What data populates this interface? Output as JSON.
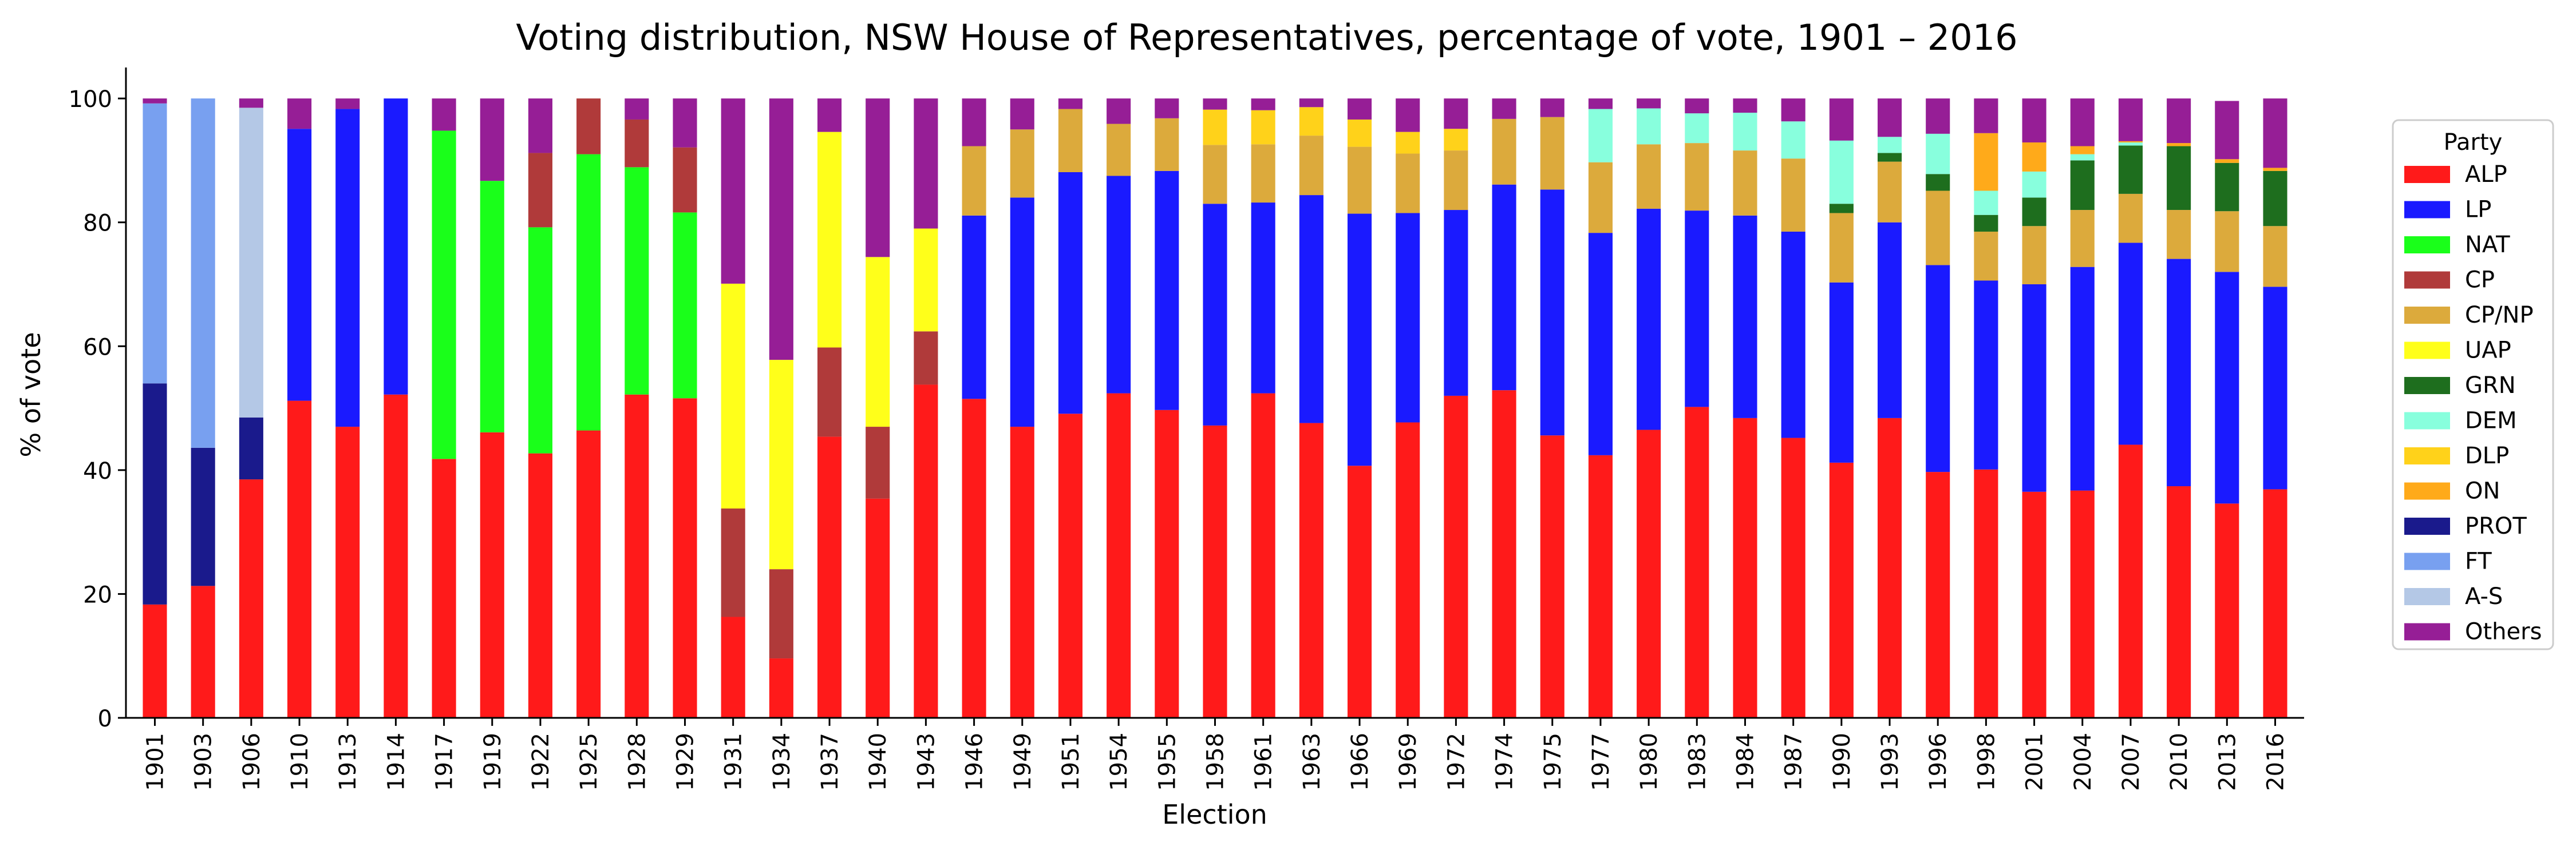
{
  "chart_data": {
    "type": "bar",
    "stacked": true,
    "title": "Voting distribution, NSW House of Representatives, percentage of vote, 1901 – 2016",
    "xlabel": "Election",
    "ylabel": "% of vote",
    "ylim": [
      0,
      105
    ],
    "yticks": [
      0,
      20,
      40,
      60,
      80,
      100
    ],
    "grid": false,
    "legend": {
      "title": "Party",
      "placement": "right"
    },
    "categories": [
      "1901",
      "1903",
      "1906",
      "1910",
      "1913",
      "1914",
      "1917",
      "1919",
      "1922",
      "1925",
      "1928",
      "1929",
      "1931",
      "1934",
      "1937",
      "1940",
      "1943",
      "1946",
      "1949",
      "1951",
      "1954",
      "1955",
      "1958",
      "1961",
      "1963",
      "1966",
      "1969",
      "1972",
      "1974",
      "1975",
      "1977",
      "1980",
      "1983",
      "1984",
      "1987",
      "1990",
      "1993",
      "1996",
      "1998",
      "2001",
      "2004",
      "2007",
      "2010",
      "2013",
      "2016"
    ],
    "series": [
      {
        "name": "ALP",
        "color": "#ff1a1a",
        "values": [
          18.3,
          21.3,
          38.5,
          51.2,
          47.0,
          52.2,
          41.8,
          46.1,
          42.7,
          46.4,
          52.2,
          51.6,
          16.3,
          9.6,
          45.4,
          35.4,
          53.8,
          51.5,
          47.0,
          49.1,
          52.4,
          49.7,
          47.2,
          52.4,
          47.6,
          40.7,
          47.7,
          52.0,
          52.9,
          45.6,
          42.4,
          46.5,
          50.2,
          48.4,
          45.2,
          41.2,
          48.4,
          39.7,
          40.1,
          36.5,
          36.7,
          44.1,
          37.4,
          34.6,
          36.9
        ]
      },
      {
        "name": "LP",
        "color": "#1a1aff",
        "values": [
          0,
          0,
          0,
          43.9,
          51.3,
          47.8,
          0,
          0,
          0,
          0,
          0,
          0,
          0,
          0,
          0,
          0,
          0,
          29.6,
          37.0,
          39.0,
          35.1,
          38.6,
          35.8,
          30.8,
          36.8,
          40.7,
          33.8,
          30.0,
          33.2,
          39.7,
          35.9,
          35.7,
          31.7,
          32.7,
          33.3,
          29.1,
          31.6,
          33.4,
          30.5,
          33.5,
          36.1,
          32.6,
          36.7,
          37.4,
          32.7
        ]
      },
      {
        "name": "NAT",
        "color": "#1aff1a",
        "values": [
          0,
          0,
          0,
          0,
          0,
          0,
          53.0,
          40.6,
          36.5,
          44.6,
          36.7,
          30.0,
          0,
          0,
          0,
          0,
          0,
          0,
          0,
          0,
          0,
          0,
          0,
          0,
          0,
          0,
          0,
          0,
          0,
          0,
          0,
          0,
          0,
          0,
          0,
          0,
          0,
          0,
          0,
          0,
          0,
          0,
          0,
          0,
          0
        ]
      },
      {
        "name": "CP",
        "color": "#b03a3a",
        "values": [
          0,
          0,
          0,
          0,
          0,
          0,
          0,
          0,
          12.0,
          9.0,
          7.7,
          10.5,
          17.5,
          14.4,
          14.4,
          11.6,
          8.6,
          0,
          0,
          0,
          0,
          0,
          0,
          0,
          0,
          0,
          0,
          0,
          0,
          0,
          0,
          0,
          0,
          0,
          0,
          0,
          0,
          0,
          0,
          0,
          0,
          0,
          0,
          0,
          0
        ]
      },
      {
        "name": "CP/NP",
        "color": "#dcaa3c",
        "values": [
          0,
          0,
          0,
          0,
          0,
          0,
          0,
          0,
          0,
          0,
          0,
          0,
          0,
          0,
          0,
          0,
          0,
          11.2,
          11.0,
          10.2,
          8.4,
          8.5,
          9.5,
          9.4,
          9.6,
          10.8,
          9.6,
          9.6,
          10.6,
          11.7,
          11.4,
          10.4,
          10.9,
          10.5,
          11.8,
          11.2,
          9.8,
          12.0,
          7.9,
          9.4,
          9.2,
          7.9,
          7.9,
          9.8,
          9.8
        ]
      },
      {
        "name": "UAP",
        "color": "#ffff1a",
        "values": [
          0,
          0,
          0,
          0,
          0,
          0,
          0,
          0,
          0,
          0,
          0,
          0,
          36.3,
          33.8,
          34.8,
          27.4,
          16.6,
          0,
          0,
          0,
          0,
          0,
          0,
          0,
          0,
          0,
          0,
          0,
          0,
          0,
          0,
          0,
          0,
          0,
          0,
          0,
          0,
          0,
          0,
          0,
          0,
          0,
          0,
          0,
          0
        ]
      },
      {
        "name": "GRN",
        "color": "#1e6e1e",
        "values": [
          0,
          0,
          0,
          0,
          0,
          0,
          0,
          0,
          0,
          0,
          0,
          0,
          0,
          0,
          0,
          0,
          0,
          0,
          0,
          0,
          0,
          0,
          0,
          0,
          0,
          0,
          0,
          0,
          0,
          0,
          0,
          0,
          0,
          0,
          0,
          1.5,
          1.4,
          2.7,
          2.7,
          4.6,
          8.0,
          7.8,
          10.3,
          7.8,
          8.9
        ]
      },
      {
        "name": "DEM",
        "color": "#88ffdd",
        "values": [
          0,
          0,
          0,
          0,
          0,
          0,
          0,
          0,
          0,
          0,
          0,
          0,
          0,
          0,
          0,
          0,
          0,
          0,
          0,
          0,
          0,
          0,
          0,
          0,
          0,
          0,
          0,
          0,
          0,
          0,
          8.6,
          5.8,
          4.8,
          6.1,
          6.0,
          10.2,
          2.6,
          6.5,
          3.9,
          4.2,
          1.0,
          0.5,
          0,
          0,
          0
        ]
      },
      {
        "name": "DLP",
        "color": "#ffd21a",
        "values": [
          0,
          0,
          0,
          0,
          0,
          0,
          0,
          0,
          0,
          0,
          0,
          0,
          0,
          0,
          0,
          0,
          0,
          0,
          0,
          0,
          0,
          0,
          5.7,
          5.5,
          4.6,
          4.4,
          3.5,
          3.5,
          0,
          0,
          0,
          0,
          0,
          0,
          0,
          0,
          0,
          0,
          0,
          0,
          0,
          0,
          0,
          0,
          0
        ]
      },
      {
        "name": "ON",
        "color": "#ffaa1a",
        "values": [
          0,
          0,
          0,
          0,
          0,
          0,
          0,
          0,
          0,
          0,
          0,
          0,
          0,
          0,
          0,
          0,
          0,
          0,
          0,
          0,
          0,
          0,
          0,
          0,
          0,
          0,
          0,
          0,
          0,
          0,
          0,
          0,
          0,
          0,
          0,
          0,
          0,
          0,
          9.3,
          4.7,
          1.3,
          0.2,
          0.5,
          0.6,
          0.5
        ]
      },
      {
        "name": "PROT",
        "color": "#1a1a8c",
        "values": [
          35.7,
          22.3,
          10.0,
          0,
          0,
          0,
          0,
          0,
          0,
          0,
          0,
          0,
          0,
          0,
          0,
          0,
          0,
          0,
          0,
          0,
          0,
          0,
          0,
          0,
          0,
          0,
          0,
          0,
          0,
          0,
          0,
          0,
          0,
          0,
          0,
          0,
          0,
          0,
          0,
          0,
          0,
          0,
          0,
          0,
          0
        ]
      },
      {
        "name": "FT",
        "color": "#78a0f0",
        "values": [
          45.2,
          56.4,
          0,
          0,
          0,
          0,
          0,
          0,
          0,
          0,
          0,
          0,
          0,
          0,
          0,
          0,
          0,
          0,
          0,
          0,
          0,
          0,
          0,
          0,
          0,
          0,
          0,
          0,
          0,
          0,
          0,
          0,
          0,
          0,
          0,
          0,
          0,
          0,
          0,
          0,
          0,
          0,
          0,
          0,
          0
        ]
      },
      {
        "name": "A-S",
        "color": "#b4c8e6",
        "values": [
          0,
          0,
          50.0,
          0,
          0,
          0,
          0,
          0,
          0,
          0,
          0,
          0,
          0,
          0,
          0,
          0,
          0,
          0,
          0,
          0,
          0,
          0,
          0,
          0,
          0,
          0,
          0,
          0,
          0,
          0,
          0,
          0,
          0,
          0,
          0,
          0,
          0,
          0,
          0,
          0,
          0,
          0,
          0,
          0,
          0
        ]
      },
      {
        "name": "Others",
        "color": "#961e96",
        "values": [
          0.8,
          0,
          1.5,
          4.9,
          1.7,
          0,
          5.2,
          13.3,
          8.8,
          0,
          3.4,
          7.9,
          29.9,
          42.2,
          5.4,
          25.6,
          21.0,
          7.7,
          5.0,
          1.7,
          4.1,
          3.2,
          1.8,
          1.9,
          1.4,
          3.4,
          5.4,
          4.9,
          3.3,
          3.0,
          1.7,
          1.6,
          2.4,
          2.3,
          3.7,
          6.8,
          6.2,
          5.7,
          5.6,
          7.1,
          7.7,
          6.9,
          7.2,
          9.4,
          11.2
        ]
      }
    ]
  }
}
